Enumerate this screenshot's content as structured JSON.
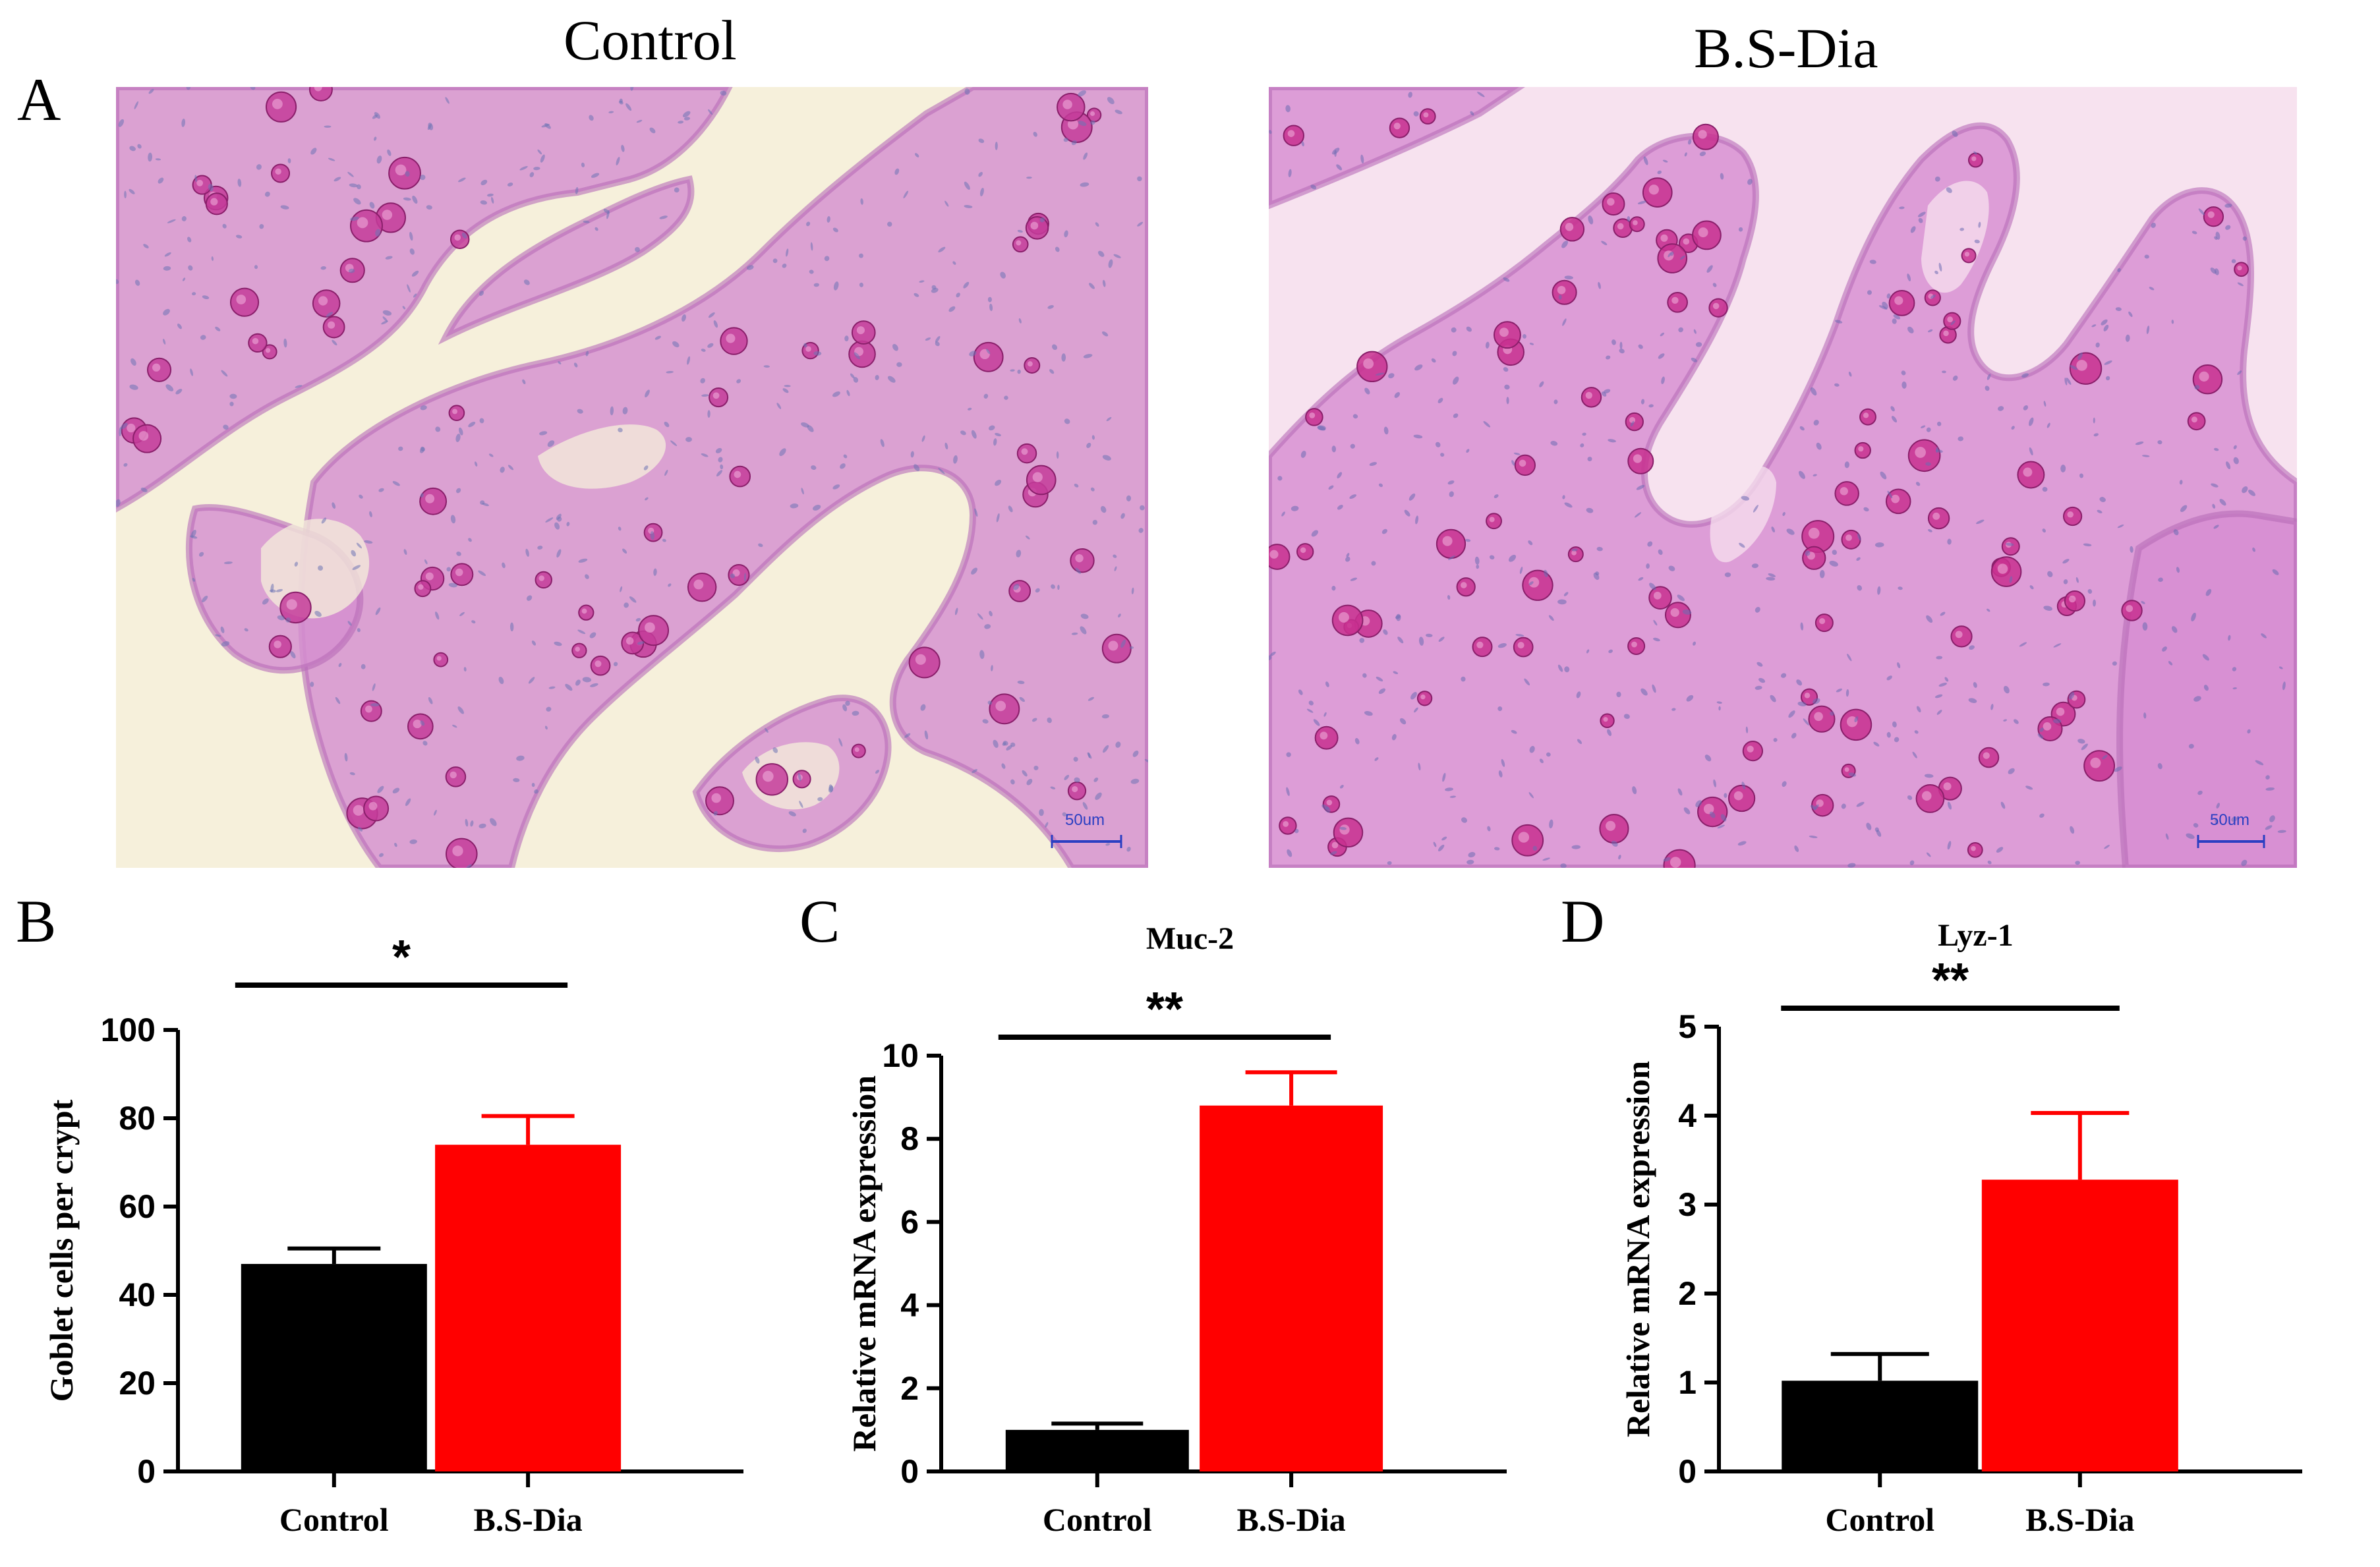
{
  "panel_a": {
    "letter": "A",
    "images": [
      {
        "title": "Control",
        "scale_bar": "50um",
        "background": "#f6f0db",
        "tissue": "#d48fd0",
        "goblet": "#c43c9a",
        "nuclei": "#6e74b4"
      },
      {
        "title": "B.S-Dia",
        "scale_bar": "50um",
        "background": "#f7e2ef",
        "tissue": "#d78dd2",
        "goblet": "#c8308f",
        "nuclei": "#6b6cb2"
      }
    ]
  },
  "colors": {
    "control": "#000000",
    "treatment": "#ff0000"
  },
  "chart_data": [
    {
      "letter": "B",
      "type": "bar",
      "title": "",
      "xlabel": "",
      "ylabel": "Goblet cells per crypt",
      "categories": [
        "Control",
        "B.S-Dia"
      ],
      "values": [
        47,
        74
      ],
      "errors": [
        3.5,
        6.5
      ],
      "ylim": [
        0,
        100
      ],
      "yticks": [
        0,
        20,
        40,
        60,
        80,
        100
      ],
      "significance": "*"
    },
    {
      "letter": "C",
      "type": "bar",
      "title": "Muc-2",
      "xlabel": "",
      "ylabel": "Relative mRNA expression",
      "categories": [
        "Control",
        "B.S-Dia"
      ],
      "values": [
        1.0,
        8.8
      ],
      "errors": [
        0.15,
        0.8
      ],
      "ylim": [
        0,
        10
      ],
      "yticks": [
        0,
        2,
        4,
        6,
        8,
        10
      ],
      "significance": "**"
    },
    {
      "letter": "D",
      "type": "bar",
      "title": "Lyz-1",
      "xlabel": "",
      "ylabel": "Relative mRNA expression",
      "categories": [
        "Control",
        "B.S-Dia"
      ],
      "values": [
        1.02,
        3.28
      ],
      "errors": [
        0.3,
        0.75
      ],
      "ylim": [
        0,
        5
      ],
      "yticks": [
        0,
        1,
        2,
        3,
        4,
        5
      ],
      "significance": "**"
    }
  ]
}
